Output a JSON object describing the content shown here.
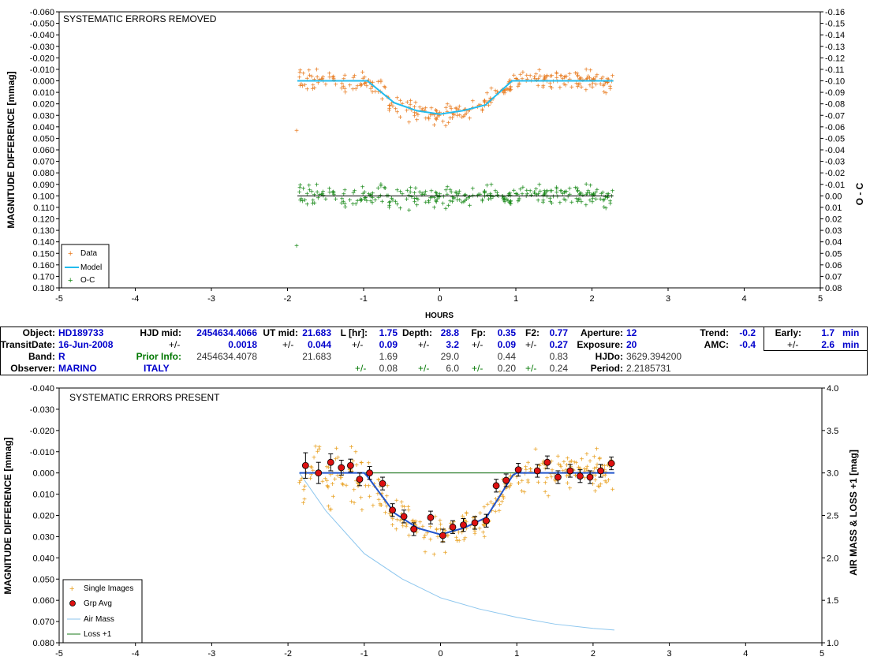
{
  "chart_data": [
    {
      "type": "scatter",
      "title": "SYSTEMATIC ERRORS REMOVED",
      "xlabel": "HOURS",
      "ylabel": "MAGNITUDE DIFFERENCE [mmag]",
      "y2label": "O - C",
      "xlim": [
        -5,
        5
      ],
      "ylim": [
        -0.06,
        0.18
      ],
      "y2lim": [
        -0.16,
        0.08
      ],
      "y_inverted": true,
      "y2_inverted": true,
      "grid": false,
      "legend_position": "bottom-left",
      "x_ticks": [
        "-5",
        "-4",
        "-3",
        "-2",
        "-1",
        "0",
        "1",
        "2",
        "3",
        "4",
        "5"
      ],
      "y_ticks": [
        "-0.060",
        "-0.050",
        "-0.040",
        "-0.030",
        "-0.020",
        "-0.010",
        "0.000",
        "0.010",
        "0.020",
        "0.030",
        "0.040",
        "0.050",
        "0.060",
        "0.070",
        "0.080",
        "0.090",
        "0.100",
        "0.110",
        "0.120",
        "0.130",
        "0.140",
        "0.150",
        "0.160",
        "0.170",
        "0.180"
      ],
      "y2_ticks": [
        "-0.16",
        "-0.15",
        "-0.14",
        "-0.13",
        "-0.12",
        "-0.11",
        "-0.10",
        "-0.09",
        "-0.08",
        "-0.07",
        "-0.06",
        "-0.05",
        "-0.04",
        "-0.03",
        "-0.02",
        "-0.01",
        "0.00",
        "0.01",
        "0.02",
        "0.03",
        "0.04",
        "0.05",
        "0.06",
        "0.07",
        "0.08"
      ],
      "series": [
        {
          "name": "Data",
          "marker": "+",
          "color": "#E87A1E",
          "x_range": [
            -1.9,
            2.28
          ],
          "note_outlier": {
            "x": -1.88,
            "y": 0.043
          }
        },
        {
          "name": "Model",
          "line": true,
          "color": "#22BBEE",
          "x": [
            -1.87,
            -1.3,
            -0.95,
            -0.6,
            -0.3,
            0.0,
            0.3,
            0.6,
            0.95,
            1.3,
            2.28
          ],
          "y": [
            0.0,
            0.0,
            0.0,
            0.019,
            0.026,
            0.029,
            0.026,
            0.021,
            0.0,
            0.0,
            0.0
          ]
        },
        {
          "name": "O-C",
          "marker": "+",
          "color": "#1A8A1A",
          "x_range": [
            -1.9,
            2.28
          ],
          "note_outlier": {
            "x": -1.88,
            "y": 0.143
          }
        },
        {
          "name": "O-C zero line",
          "line": true,
          "color": "#000000",
          "x": [
            -1.87,
            2.28
          ],
          "y": [
            0.1,
            0.1
          ]
        }
      ]
    },
    {
      "type": "scatter",
      "title": "SYSTEMATIC ERRORS PRESENT",
      "xlabel": "",
      "ylabel": "MAGNITUDE DIFFERENCE [mmag]",
      "y2label": "AIR MASS & LOSS +1 [mag]",
      "xlim": [
        -5,
        5
      ],
      "ylim": [
        -0.04,
        0.08
      ],
      "y2lim": [
        1.0,
        4.0
      ],
      "y_inverted": true,
      "grid": false,
      "legend_position": "bottom-left",
      "x_ticks": [
        "-5",
        "-4",
        "-3",
        "-2",
        "-1",
        "0",
        "1",
        "2",
        "3",
        "4",
        "5"
      ],
      "y_ticks": [
        "-0.040",
        "-0.030",
        "-0.020",
        "-0.010",
        "0.000",
        "0.010",
        "0.020",
        "0.030",
        "0.040",
        "0.050",
        "0.060",
        "0.070",
        "0.080"
      ],
      "y2_ticks": [
        "4.0",
        "3.5",
        "3.0",
        "2.5",
        "2.0",
        "1.5",
        "1.0"
      ],
      "group_averages": {
        "x": [
          -1.77,
          -1.6,
          -1.44,
          -1.3,
          -1.18,
          -1.06,
          -0.93,
          -0.76,
          -0.63,
          -0.48,
          -0.35,
          -0.13,
          0.03,
          0.16,
          0.3,
          0.45,
          0.6,
          0.73,
          0.86,
          1.02,
          1.27,
          1.4,
          1.54,
          1.7,
          1.83,
          1.96,
          2.1,
          2.24
        ],
        "y": [
          -0.0035,
          0.0,
          -0.005,
          -0.0025,
          -0.0035,
          0.003,
          0.0,
          0.005,
          0.0175,
          0.0205,
          0.0265,
          0.021,
          0.0295,
          0.0255,
          0.0245,
          0.0235,
          0.0225,
          0.006,
          0.0035,
          -0.0015,
          -0.001,
          -0.005,
          0.002,
          -0.001,
          0.0015,
          0.002,
          -0.001,
          -0.0045
        ],
        "err": [
          0.006,
          0.005,
          0.004,
          0.0035,
          0.003,
          0.003,
          0.003,
          0.003,
          0.003,
          0.003,
          0.003,
          0.003,
          0.003,
          0.003,
          0.003,
          0.003,
          0.003,
          0.003,
          0.003,
          0.003,
          0.003,
          0.003,
          0.003,
          0.003,
          0.003,
          0.003,
          0.003,
          0.003
        ]
      },
      "series": [
        {
          "name": "Single Images",
          "marker": "+",
          "color": "#E8A020",
          "x_range": [
            -1.9,
            2.28
          ]
        },
        {
          "name": "Grp Avg",
          "marker": "circle",
          "color": "#DD1111"
        },
        {
          "name": "Air Mass",
          "line": true,
          "color": "#8CC6EE",
          "x": [
            -1.85,
            -1.5,
            -1.0,
            -0.5,
            0.0,
            0.5,
            1.0,
            1.5,
            2.0,
            2.28
          ],
          "y2": [
            3.0,
            2.55,
            2.05,
            1.75,
            1.53,
            1.4,
            1.3,
            1.22,
            1.17,
            1.15
          ]
        },
        {
          "name": "Loss +1",
          "line": true,
          "color": "#1A7A1A",
          "x": [
            -1.85,
            2.28
          ],
          "y2": [
            3.0,
            3.0
          ]
        },
        {
          "name": "Model",
          "line": true,
          "color": "#2255CC",
          "x": [
            -1.85,
            -1.0,
            -0.95,
            -0.6,
            -0.3,
            0.0,
            0.3,
            0.6,
            0.95,
            1.0,
            2.28
          ],
          "y": [
            0.0,
            0.0,
            0.002,
            0.019,
            0.026,
            0.029,
            0.026,
            0.021,
            0.001,
            0.0,
            0.0
          ]
        },
        {
          "name": "Zero line",
          "line": true,
          "color": "#888888",
          "x": [
            -1.85,
            2.28
          ],
          "y": [
            0.0,
            0.0
          ]
        }
      ]
    }
  ],
  "info": {
    "object_label": "Object:",
    "object": "HD189733",
    "hjdmid_label": "HJD mid:",
    "hjdmid": "2454634.4066",
    "utmid_label": "UT mid:",
    "utmid": "21.683",
    "lhr_label": "L [hr]:",
    "lhr": "1.75",
    "depth_label": "Depth:",
    "depth": "28.8",
    "fp_label": "Fp:",
    "fp": "0.35",
    "f2_label": "F2:",
    "f2": "0.77",
    "aperture_label": "Aperture:",
    "aperture": "12",
    "trend_label": "Trend:",
    "trend": "-0.2",
    "early_label": "Early:",
    "early": "1.7",
    "early_unit": "min",
    "transitdate_label": "TransitDate:",
    "transitdate": "16-Jun-2008",
    "pm": "+/-",
    "hjdmid_err": "0.0018",
    "utmid_err": "0.044",
    "lhr_err": "0.09",
    "depth_err": "3.2",
    "fp_err": "0.09",
    "f2_err": "0.27",
    "exposure_label": "Exposure:",
    "exposure": "20",
    "amc_label": "AMC:",
    "amc": "-0.4",
    "early_err": "2.6",
    "early_err_unit": "min",
    "band_label": "Band:",
    "band": "R",
    "prior_label": "Prior Info:",
    "prior_hjd": "2454634.4078",
    "prior_ut": "21.683",
    "prior_l": "1.69",
    "prior_depth": "29.0",
    "prior_fp": "0.44",
    "prior_f2": "0.83",
    "hjdo_label": "HJDo:",
    "hjdo": "3629.394200",
    "observer_label": "Observer:",
    "observer": "MARINO",
    "location": "ITALY",
    "prior_l_err": "0.08",
    "prior_depth_err": "6.0",
    "prior_fp_err": "0.20",
    "prior_f2_err": "0.24",
    "period_label": "Period:",
    "period": "2.2185731"
  }
}
